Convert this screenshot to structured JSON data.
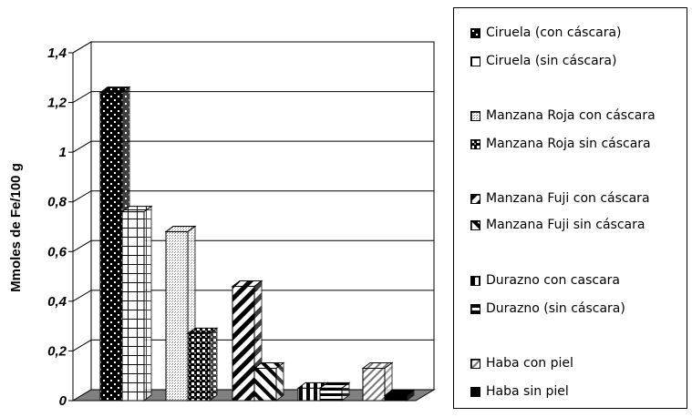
{
  "chart_data": {
    "type": "bar",
    "title": "",
    "xlabel": "",
    "ylabel": "Mmoles de Fe/100 g",
    "ylim": [
      0,
      1.4
    ],
    "yticks": [
      "0",
      "0,2",
      "0,4",
      "0,6",
      "0,8",
      "1",
      "1,2",
      "1,4"
    ],
    "grid": true,
    "legend_position": "right",
    "series": [
      {
        "name": "Ciruela (con cáscara)",
        "value": 1.24,
        "group": 0,
        "color": "#111111"
      },
      {
        "name": "Ciruela (sin cáscara)",
        "value": 0.76,
        "group": 0,
        "color": "#ffffff"
      },
      {
        "name": "Manzana Roja con cáscara",
        "value": 0.68,
        "group": 1,
        "color": "#cfcfcf"
      },
      {
        "name": "Manzana Roja sin cáscara",
        "value": 0.27,
        "group": 1,
        "color": "#222222"
      },
      {
        "name": "Manzana Fuji con cáscara",
        "value": 0.46,
        "group": 2,
        "color": "#444444"
      },
      {
        "name": "Manzana Fuji sin cáscara",
        "value": 0.13,
        "group": 2,
        "color": "#444444"
      },
      {
        "name": "Durazno con cascara",
        "value": 0.05,
        "group": 3,
        "color": "#111111"
      },
      {
        "name": "Durazno (sin cáscara)",
        "value": 0.05,
        "group": 3,
        "color": "#111111"
      },
      {
        "name": "Haba con piel",
        "value": 0.13,
        "group": 4,
        "color": "#777777"
      },
      {
        "name": "Haba sin piel",
        "value": 0.02,
        "group": 4,
        "color": "#000000"
      }
    ]
  }
}
